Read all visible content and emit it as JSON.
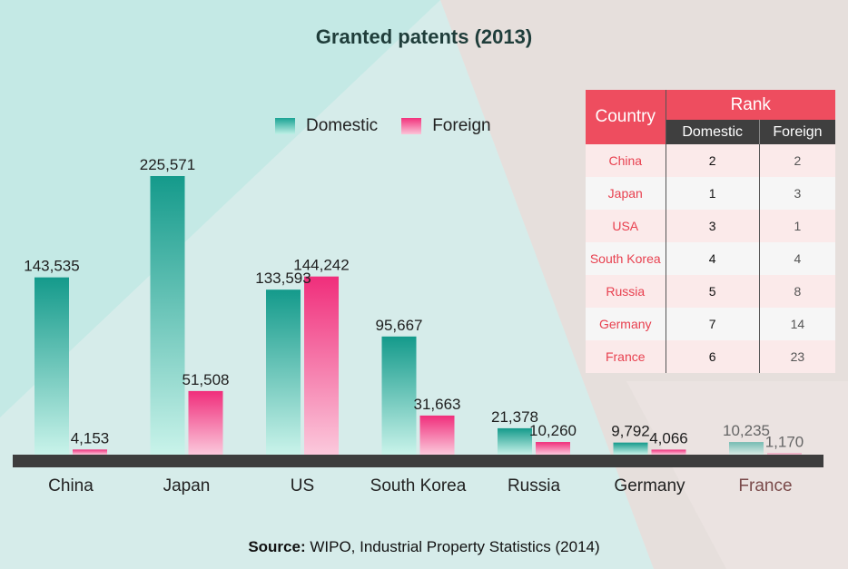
{
  "chart_data": {
    "type": "bar",
    "title": "Granted patents (2013)",
    "categories": [
      "China",
      "Japan",
      "US",
      "South Korea",
      "Russia",
      "Germany",
      "France"
    ],
    "series": [
      {
        "name": "Domestic",
        "color": "#1aa394",
        "values": [
          143535,
          225571,
          133593,
          95667,
          21378,
          9792,
          10235
        ],
        "labels": [
          "143,535",
          "225,571",
          "133,593",
          "95,667",
          "21,378",
          "9,792",
          "10,235"
        ]
      },
      {
        "name": "Foreign",
        "color": "#f2317c",
        "values": [
          4153,
          51508,
          144242,
          31663,
          10260,
          4066,
          1170
        ],
        "labels": [
          "4,153",
          "51,508",
          "144,242",
          "31,663",
          "10,260",
          "4,066",
          "1,170"
        ]
      }
    ],
    "xlabel": "",
    "ylabel": "",
    "ylim": [
      0,
      225571
    ],
    "legend": "top-center"
  },
  "legend": {
    "domestic": "Domestic",
    "foreign": "Foreign"
  },
  "rank_table": {
    "header_country": "Country",
    "header_rank": "Rank",
    "header_domestic": "Domestic",
    "header_foreign": "Foreign",
    "rows": [
      {
        "country": "China",
        "domestic": "2",
        "foreign": "2"
      },
      {
        "country": "Japan",
        "domestic": "1",
        "foreign": "3"
      },
      {
        "country": "USA",
        "domestic": "3",
        "foreign": "1"
      },
      {
        "country": "South Korea",
        "domestic": "4",
        "foreign": "4"
      },
      {
        "country": "Russia",
        "domestic": "5",
        "foreign": "8"
      },
      {
        "country": "Germany",
        "domestic": "7",
        "foreign": "14"
      },
      {
        "country": "France",
        "domestic": "6",
        "foreign": "23"
      }
    ]
  },
  "source": {
    "label": "Source:",
    "text": " WIPO, Industrial Property Statistics (2014)"
  }
}
